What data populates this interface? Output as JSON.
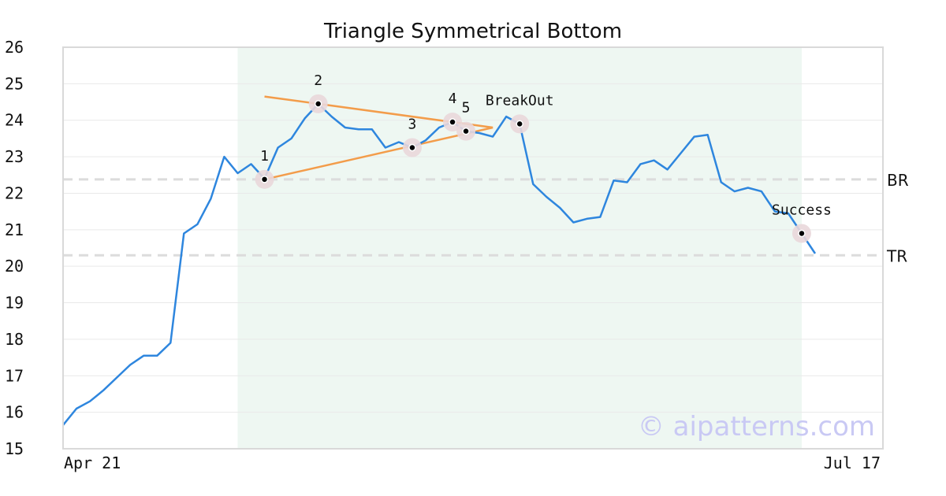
{
  "chart_data": {
    "type": "line",
    "title": "Triangle Symmetrical Bottom",
    "xlabel": "",
    "ylabel": "",
    "ylim": [
      15,
      26
    ],
    "yticks": [
      15,
      16,
      17,
      18,
      19,
      20,
      21,
      22,
      23,
      24,
      25,
      26
    ],
    "xtick_labels": [
      "Apr 21",
      "Jul 17"
    ],
    "grid": true,
    "pattern_window": [
      13,
      55
    ],
    "series": [
      {
        "values": [
          15.65,
          16.1,
          16.3,
          16.6,
          16.95,
          17.3,
          17.55,
          17.55,
          17.9,
          20.9,
          21.15,
          21.85,
          23.0,
          22.55,
          22.8,
          22.4,
          23.25,
          23.5,
          24.05,
          24.45,
          24.1,
          23.8,
          23.75,
          23.75,
          23.25,
          23.4,
          23.25,
          23.45,
          23.8,
          23.95,
          23.7,
          23.65,
          23.55,
          24.1,
          23.9,
          22.25,
          21.9,
          21.6,
          21.2,
          21.3,
          21.35,
          22.35,
          22.3,
          22.8,
          22.9,
          22.65,
          23.1,
          23.55,
          23.6,
          22.3,
          22.05,
          22.15,
          22.05,
          21.5,
          21.45,
          20.9,
          20.35
        ],
        "color": "#2e86de"
      }
    ],
    "trendlines": [
      {
        "from": [
          15,
          24.65
        ],
        "to": [
          32,
          23.8
        ],
        "color": "#f39c4a"
      },
      {
        "from": [
          15,
          22.38
        ],
        "to": [
          32,
          23.8
        ],
        "color": "#f39c4a"
      }
    ],
    "reference_lines": [
      {
        "label": "BR",
        "value": 22.38
      },
      {
        "label": "TR",
        "value": 20.3
      }
    ],
    "points": [
      {
        "label": "1",
        "x": 15,
        "y": 22.38
      },
      {
        "label": "2",
        "x": 19,
        "y": 24.45
      },
      {
        "label": "3",
        "x": 26,
        "y": 23.25
      },
      {
        "label": "4",
        "x": 29,
        "y": 23.95
      },
      {
        "label": "5",
        "x": 30,
        "y": 23.7
      },
      {
        "label": "BreakOut",
        "x": 34,
        "y": 23.9
      },
      {
        "label": "Success",
        "x": 55,
        "y": 20.9
      }
    ],
    "watermark": "© aipatterns.com"
  }
}
